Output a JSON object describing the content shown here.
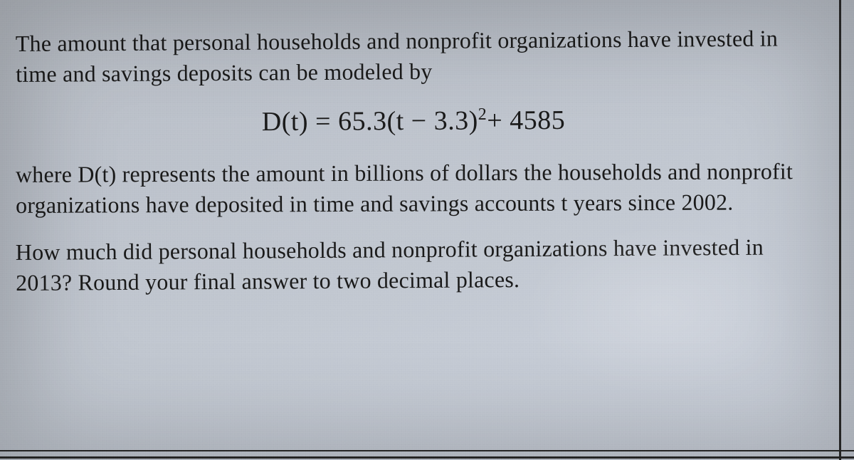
{
  "colors": {
    "text": "#1a1a1a",
    "background_gradient_stops": [
      "#b8bdc5",
      "#bcc2cb",
      "#c0c6cf",
      "#c5cbd5",
      "#cad0da"
    ],
    "border": "#2a2a2a"
  },
  "typography": {
    "body_family": "Times New Roman",
    "body_size_pt": 24,
    "equation_size_pt": 28
  },
  "problem": {
    "intro": "The amount that personal households and nonprofit organizations have invested in time and savings deposits can be modeled by",
    "equation": {
      "lhs": "D(t)",
      "eq": " = ",
      "a": "65.3",
      "inner_open": "(t",
      "minus": " − ",
      "h": "3.3",
      "inner_close": ")",
      "exp": "2",
      "plus": "+ ",
      "k": "4585"
    },
    "explain": "where D(t) represents the amount in billions of dollars the households and nonprofit organizations have deposited in time and savings accounts t years since 2002.",
    "question": "How much did personal households and nonprofit organizations have invested in 2013?  Round your final answer to two decimal places."
  }
}
